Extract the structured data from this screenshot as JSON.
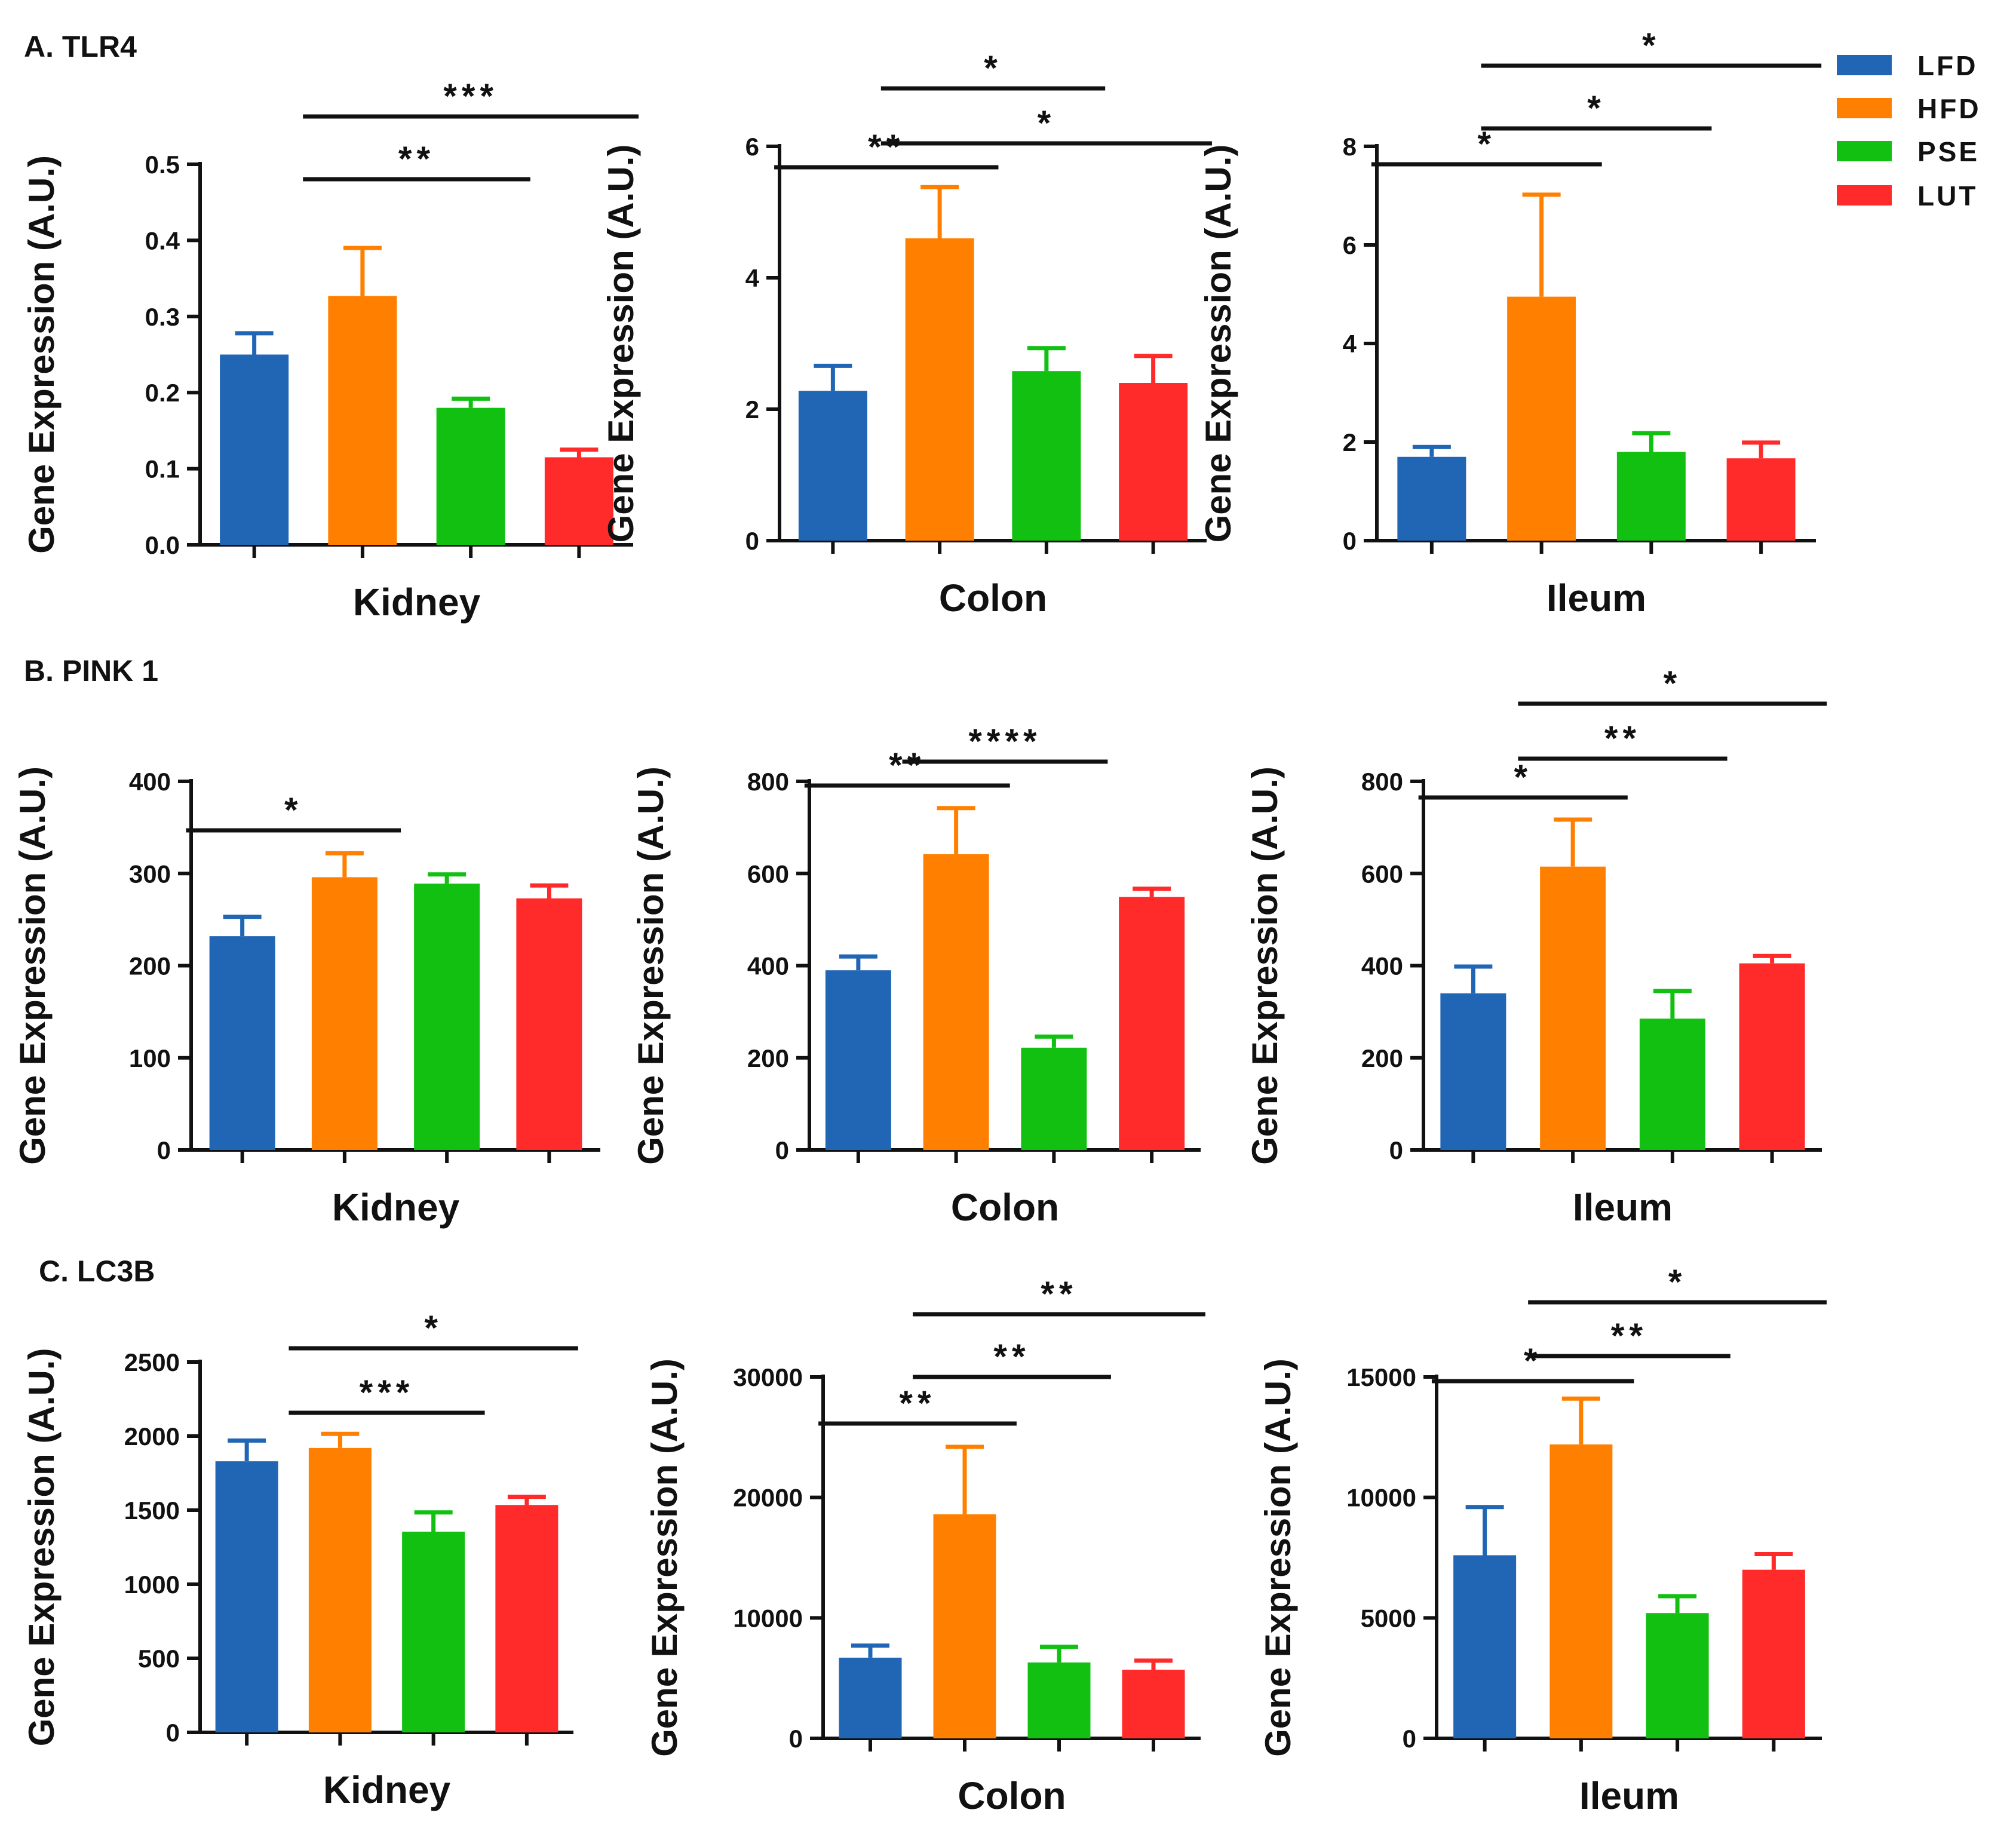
{
  "legend": [
    {
      "name": "LFD",
      "color": "#2166b4"
    },
    {
      "name": "HFD",
      "color": "#ff8000"
    },
    {
      "name": "PSE",
      "color": "#11c011"
    },
    {
      "name": "LUT",
      "color": "#ff2a2a"
    }
  ],
  "rows": [
    {
      "label": "A. TLR4"
    },
    {
      "label": "B. PINK 1"
    },
    {
      "label": "C. LC3B"
    }
  ],
  "chart_data": [
    {
      "type": "bar",
      "gene": "TLR4",
      "tissue": "Kidney",
      "title": "",
      "xlabel": "Kidney",
      "ylabel": "Gene Expression (A.U.)",
      "ylim": [
        0,
        0.5
      ],
      "yticks": [
        "0.0",
        "0.1",
        "0.2",
        "0.3",
        "0.4",
        "0.5"
      ],
      "ytick_values": [
        0,
        0.1,
        0.2,
        0.3,
        0.4,
        0.5
      ],
      "categories": [
        "LFD",
        "HFD",
        "PSE",
        "LUT"
      ],
      "values": [
        0.25,
        0.327,
        0.18,
        0.115
      ],
      "errors": [
        0.028,
        0.063,
        0.012,
        0.01
      ],
      "significance": [
        {
          "from": 1,
          "to": 2,
          "label": "**"
        },
        {
          "from": 1,
          "to": 3,
          "label": "***"
        }
      ]
    },
    {
      "type": "bar",
      "gene": "TLR4",
      "tissue": "Colon",
      "title": "",
      "xlabel": "Colon",
      "ylabel": "Gene Expression (A.U.)",
      "ylim": [
        0,
        6
      ],
      "yticks": [
        "0",
        "2",
        "4",
        "6"
      ],
      "ytick_values": [
        0,
        2,
        4,
        6
      ],
      "categories": [
        "LFD",
        "HFD",
        "PSE",
        "LUT"
      ],
      "values": [
        2.28,
        4.6,
        2.58,
        2.4
      ],
      "errors": [
        0.38,
        0.78,
        0.35,
        0.41
      ],
      "significance": [
        {
          "from": 0,
          "to": 1,
          "label": "**"
        },
        {
          "from": 1,
          "to": 2,
          "label": "*"
        },
        {
          "from": 1,
          "to": 3,
          "label": "*"
        }
      ]
    },
    {
      "type": "bar",
      "gene": "TLR4",
      "tissue": "Ileum",
      "title": "",
      "xlabel": "Ileum",
      "ylabel": "Gene Expression (A.U.)",
      "ylim": [
        0,
        8
      ],
      "yticks": [
        "0",
        "2",
        "4",
        "6",
        "8"
      ],
      "ytick_values": [
        0,
        2,
        4,
        6,
        8
      ],
      "categories": [
        "LFD",
        "HFD",
        "PSE",
        "LUT"
      ],
      "values": [
        1.7,
        4.95,
        1.8,
        1.67
      ],
      "errors": [
        0.2,
        2.07,
        0.38,
        0.32
      ],
      "significance": [
        {
          "from": 0,
          "to": 1,
          "label": "*"
        },
        {
          "from": 1,
          "to": 2,
          "label": "*"
        },
        {
          "from": 1,
          "to": 3,
          "label": "*"
        }
      ]
    },
    {
      "type": "bar",
      "gene": "PINK 1",
      "tissue": "Kidney",
      "title": "",
      "xlabel": "Kidney",
      "ylabel": "Gene Expression (A.U.)",
      "ylim": [
        0,
        400
      ],
      "yticks": [
        "0",
        "100",
        "200",
        "300",
        "400"
      ],
      "ytick_values": [
        0,
        100,
        200,
        300,
        400
      ],
      "categories": [
        "LFD",
        "HFD",
        "PSE",
        "LUT"
      ],
      "values": [
        232,
        296,
        289,
        273
      ],
      "errors": [
        21,
        26,
        10,
        14
      ],
      "significance": [
        {
          "from": 0,
          "to": 1,
          "label": "*"
        }
      ]
    },
    {
      "type": "bar",
      "gene": "PINK 1",
      "tissue": "Colon",
      "title": "",
      "xlabel": "Colon",
      "ylabel": "Gene Expression (A.U.)",
      "ylim": [
        0,
        800
      ],
      "yticks": [
        "0",
        "200",
        "400",
        "600",
        "800"
      ],
      "ytick_values": [
        0,
        200,
        400,
        600,
        800
      ],
      "categories": [
        "LFD",
        "HFD",
        "PSE",
        "LUT"
      ],
      "values": [
        390,
        642,
        222,
        549
      ],
      "errors": [
        30,
        100,
        24,
        18
      ],
      "significance": [
        {
          "from": 0,
          "to": 1,
          "label": "**"
        },
        {
          "from": 1,
          "to": 2,
          "label": "****"
        }
      ]
    },
    {
      "type": "bar",
      "gene": "PINK 1",
      "tissue": "Ileum",
      "title": "",
      "xlabel": "Ileum",
      "ylabel": "Gene Expression (A.U.)",
      "ylim": [
        0,
        800
      ],
      "yticks": [
        "0",
        "200",
        "400",
        "600",
        "800"
      ],
      "ytick_values": [
        0,
        200,
        400,
        600,
        800
      ],
      "categories": [
        "LFD",
        "HFD",
        "PSE",
        "LUT"
      ],
      "values": [
        340,
        615,
        285,
        405
      ],
      "errors": [
        58,
        102,
        60,
        16
      ],
      "significance": [
        {
          "from": 0,
          "to": 1,
          "label": "*"
        },
        {
          "from": 1,
          "to": 2,
          "label": "**"
        },
        {
          "from": 1,
          "to": 3,
          "label": "*"
        }
      ]
    },
    {
      "type": "bar",
      "gene": "LC3B",
      "tissue": "Kidney",
      "title": "",
      "xlabel": "Kidney",
      "ylabel": "Gene Expression (A.U.)",
      "ylim": [
        0,
        2500
      ],
      "yticks": [
        "0",
        "500",
        "1000",
        "1500",
        "2000",
        "2500"
      ],
      "ytick_values": [
        0,
        500,
        1000,
        1500,
        2000,
        2500
      ],
      "categories": [
        "LFD",
        "HFD",
        "PSE",
        "LUT"
      ],
      "values": [
        1830,
        1920,
        1355,
        1535
      ],
      "errors": [
        140,
        95,
        130,
        55
      ],
      "significance": [
        {
          "from": 1,
          "to": 2,
          "label": "***"
        },
        {
          "from": 1,
          "to": 3,
          "label": "*"
        }
      ]
    },
    {
      "type": "bar",
      "gene": "LC3B",
      "tissue": "Colon",
      "title": "",
      "xlabel": "Colon",
      "ylabel": "Gene Expression (A.U.)",
      "ylim": [
        0,
        30000
      ],
      "yticks": [
        "0",
        "10000",
        "20000",
        "30000"
      ],
      "ytick_values": [
        0,
        10000,
        20000,
        30000
      ],
      "categories": [
        "LFD",
        "HFD",
        "PSE",
        "LUT"
      ],
      "values": [
        6700,
        18600,
        6300,
        5700
      ],
      "errors": [
        1000,
        5600,
        1300,
        750
      ],
      "significance": [
        {
          "from": 0,
          "to": 1,
          "label": "**"
        },
        {
          "from": 1,
          "to": 2,
          "label": "**"
        },
        {
          "from": 1,
          "to": 3,
          "label": "**"
        }
      ]
    },
    {
      "type": "bar",
      "gene": "LC3B",
      "tissue": "Ileum",
      "title": "",
      "xlabel": "Ileum",
      "ylabel": "Gene Expression (A.U.)",
      "ylim": [
        0,
        15000
      ],
      "yticks": [
        "0",
        "5000",
        "10000",
        "15000"
      ],
      "ytick_values": [
        0,
        5000,
        10000,
        15000
      ],
      "categories": [
        "LFD",
        "HFD",
        "PSE",
        "LUT"
      ],
      "values": [
        7600,
        12200,
        5200,
        7000
      ],
      "errors": [
        2000,
        1900,
        700,
        650
      ],
      "significance": [
        {
          "from": 0,
          "to": 1,
          "label": "*"
        },
        {
          "from": 1,
          "to": 2,
          "label": "**"
        },
        {
          "from": 1,
          "to": 3,
          "label": "*"
        }
      ]
    }
  ]
}
